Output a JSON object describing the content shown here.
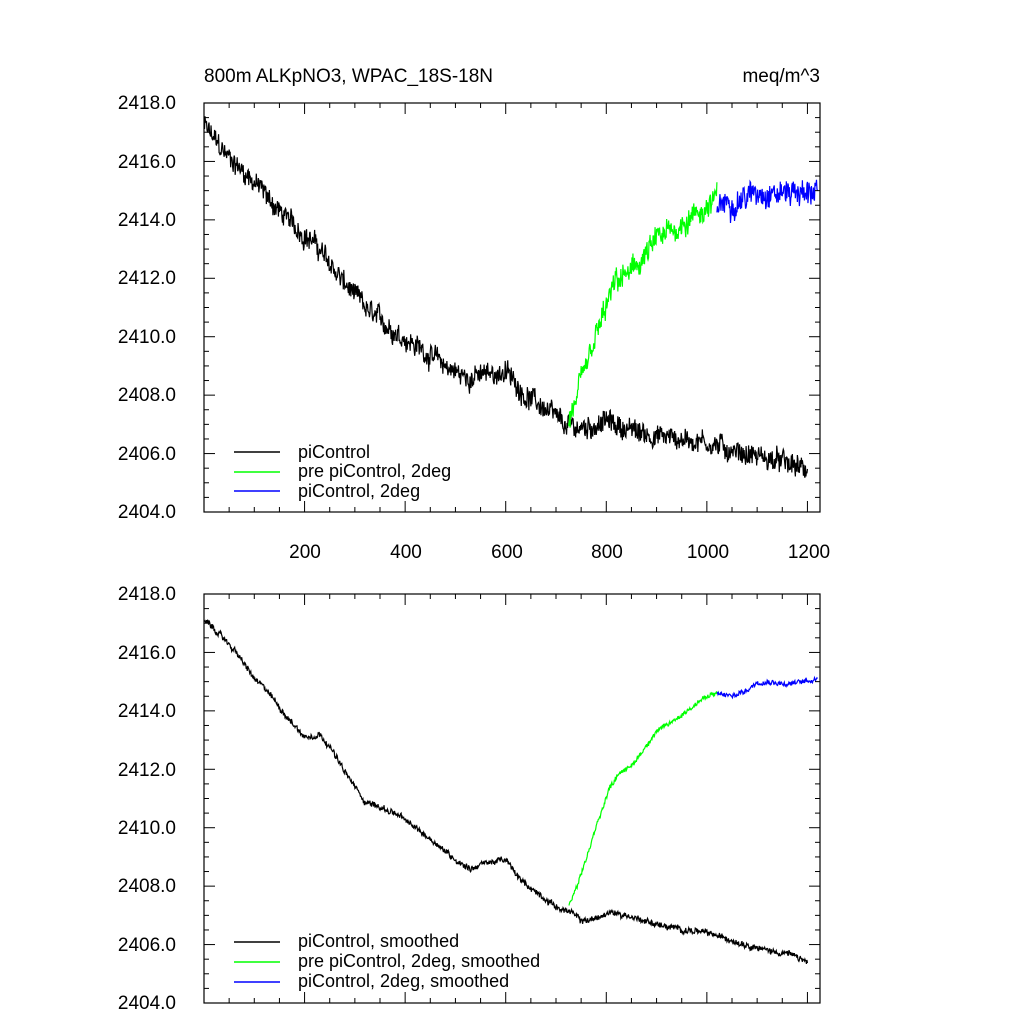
{
  "chart_data": [
    {
      "type": "line",
      "title": "800m ALKpNO3, WPAC_18S-18N",
      "units": "meq/m^3",
      "xlabel": "",
      "ylabel": "",
      "xlim": [
        0,
        1225
      ],
      "ylim": [
        2404.0,
        2418.0
      ],
      "x_tick_labels": [
        "200",
        "400",
        "600",
        "800",
        "1000",
        "1200"
      ],
      "y_tick_labels": [
        "2404.0",
        "2406.0",
        "2408.0",
        "2410.0",
        "2412.0",
        "2414.0",
        "2416.0",
        "2418.0"
      ],
      "legend_position": "bottom-left",
      "series": [
        {
          "name": "piControl",
          "color": "#000000",
          "noise": 0.35,
          "x": [
            1,
            40,
            100,
            160,
            220,
            280,
            330,
            380,
            430,
            480,
            520,
            560,
            600,
            640,
            680,
            720,
            760,
            800,
            850,
            900,
            950,
            1000,
            1050,
            1100,
            1150,
            1200
          ],
          "y": [
            2417.2,
            2416.3,
            2415.3,
            2414.1,
            2413.2,
            2411.8,
            2410.8,
            2410.2,
            2409.6,
            2409.0,
            2408.6,
            2408.7,
            2408.8,
            2408.0,
            2407.5,
            2406.9,
            2406.9,
            2407.1,
            2406.8,
            2406.6,
            2406.5,
            2406.4,
            2406.1,
            2405.9,
            2405.7,
            2405.4
          ]
        },
        {
          "name": "pre piControl, 2deg",
          "color": "#00ff00",
          "noise": 0.4,
          "x": [
            725,
            740,
            760,
            780,
            800,
            820,
            850,
            880,
            900,
            930,
            960,
            990,
            1020
          ],
          "y": [
            2407.0,
            2407.8,
            2408.9,
            2410.0,
            2411.0,
            2411.9,
            2412.2,
            2412.8,
            2413.3,
            2413.6,
            2414.0,
            2414.3,
            2414.7
          ]
        },
        {
          "name": "piControl, 2deg",
          "color": "#0000ff",
          "noise": 0.4,
          "x": [
            1020,
            1050,
            1080,
            1110,
            1140,
            1170,
            1200,
            1220
          ],
          "y": [
            2414.6,
            2414.6,
            2414.8,
            2415.0,
            2414.9,
            2415.0,
            2414.9,
            2415.1
          ]
        }
      ]
    },
    {
      "type": "line",
      "title": "",
      "xlabel": "",
      "ylabel": "",
      "xlim": [
        0,
        1225
      ],
      "ylim": [
        2404.0,
        2418.0
      ],
      "y_tick_labels": [
        "2404.0",
        "2406.0",
        "2408.0",
        "2410.0",
        "2412.0",
        "2414.0",
        "2416.0",
        "2418.0"
      ],
      "legend_position": "bottom-left",
      "series": [
        {
          "name": "piControl, smoothed",
          "color": "#000000",
          "noise": 0.1,
          "x": [
            1,
            20,
            60,
            100,
            130,
            160,
            200,
            230,
            250,
            280,
            320,
            350,
            380,
            420,
            460,
            500,
            530,
            560,
            600,
            630,
            660,
            700,
            730,
            750,
            780,
            810,
            840,
            880,
            920,
            960,
            1000,
            1040,
            1080,
            1120,
            1160,
            1200
          ],
          "y": [
            2417.1,
            2416.8,
            2416.1,
            2415.1,
            2414.6,
            2413.9,
            2413.1,
            2413.2,
            2412.8,
            2411.9,
            2410.9,
            2410.7,
            2410.5,
            2410.0,
            2409.5,
            2408.9,
            2408.6,
            2408.8,
            2408.9,
            2408.2,
            2407.8,
            2407.3,
            2407.1,
            2406.8,
            2406.9,
            2407.1,
            2407.0,
            2406.8,
            2406.6,
            2406.5,
            2406.4,
            2406.2,
            2406.0,
            2405.8,
            2405.7,
            2405.4
          ]
        },
        {
          "name": "pre piControl, 2deg, smoothed",
          "color": "#00ff00",
          "noise": 0.08,
          "x": [
            725,
            745,
            765,
            785,
            805,
            825,
            850,
            875,
            900,
            930,
            960,
            990,
            1020
          ],
          "y": [
            2407.3,
            2408.1,
            2409.2,
            2410.3,
            2411.3,
            2411.9,
            2412.1,
            2412.7,
            2413.3,
            2413.6,
            2414.0,
            2414.4,
            2414.6
          ]
        },
        {
          "name": "piControl, 2deg, smoothed",
          "color": "#0000ff",
          "noise": 0.08,
          "x": [
            1020,
            1050,
            1080,
            1100,
            1130,
            1160,
            1190,
            1220
          ],
          "y": [
            2414.6,
            2414.5,
            2414.7,
            2415.0,
            2415.0,
            2414.9,
            2415.0,
            2415.1
          ]
        }
      ]
    }
  ]
}
